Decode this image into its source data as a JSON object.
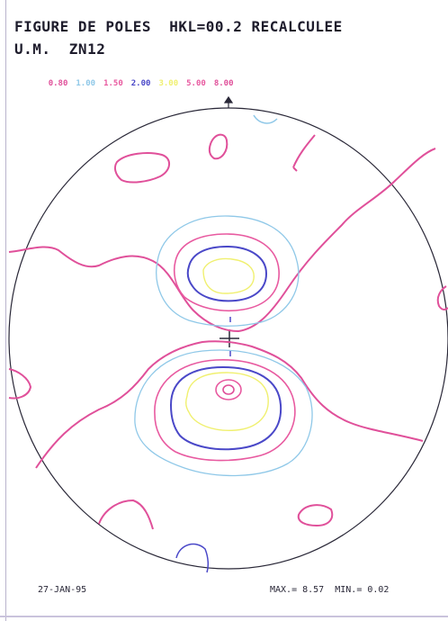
{
  "title": "FIGURE DE POLES  HKL=00.2 RECALCULEE",
  "subtitle": "U.M.  ZN12",
  "levels": [
    {
      "label": "0.80",
      "color": "#e0509a"
    },
    {
      "label": "1.00",
      "color": "#8fc8e8"
    },
    {
      "label": "1.50",
      "color": "#e85aa0"
    },
    {
      "label": "2.00",
      "color": "#4a48c8"
    },
    {
      "label": "3.00",
      "color": "#f0f070"
    },
    {
      "label": "5.00",
      "color": "#e85aa0"
    },
    {
      "label": "8.00",
      "color": "#e0509a"
    }
  ],
  "footer": {
    "date": "27-JAN-95",
    "stats": "MAX.= 8.57  MIN.= 0.02"
  },
  "colors": {
    "circle": "#2a2838",
    "text": "#1e1c2c"
  }
}
